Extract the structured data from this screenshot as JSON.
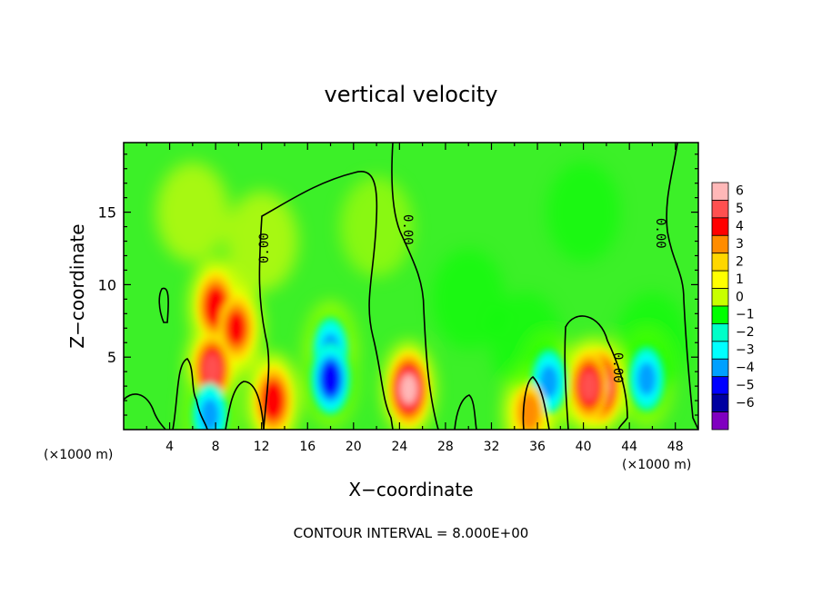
{
  "chart_data": {
    "type": "heatmap",
    "title": "vertical velocity",
    "xlabel": "X−coordinate",
    "ylabel": "Z−coordinate",
    "x_unit_left": "(×1000 m)",
    "x_unit_right": "(×1000 m)",
    "footer": "CONTOUR INTERVAL = 8.000E+00",
    "xlim": [
      0,
      50
    ],
    "ylim": [
      0,
      19.8
    ],
    "x_ticks": [
      "4",
      "8",
      "12",
      "16",
      "20",
      "24",
      "28",
      "32",
      "36",
      "40",
      "44",
      "48"
    ],
    "y_ticks": [
      "5",
      "10",
      "15"
    ],
    "colorbar": {
      "labels": [
        "6",
        "5",
        "4",
        "3",
        "2",
        "1",
        "0",
        "−1",
        "−2",
        "−3",
        "−4",
        "−5",
        "−6"
      ],
      "levels": [
        6,
        5,
        4,
        3,
        2,
        1,
        0,
        -1,
        -2,
        -3,
        -4,
        -5,
        -6
      ],
      "colors": [
        "#ffb8b8",
        "#ff5050",
        "#ff0000",
        "#ff8c00",
        "#ffd700",
        "#ffff00",
        "#c8ff00",
        "#00ff00",
        "#00ffc8",
        "#00ffff",
        "#00a0ff",
        "#0000ff",
        "#0000a0",
        "#8000c0"
      ]
    },
    "contour_labels": [
      "0.00",
      "0.00",
      "0.00",
      "0.00"
    ],
    "features": [
      {
        "x": 8,
        "z": 8.5,
        "w": 4.5
      },
      {
        "x": 9.8,
        "z": 7,
        "w": 4
      },
      {
        "x": 7.7,
        "z": 4.2,
        "w": 5
      },
      {
        "x": 13,
        "z": 2,
        "w": 4.5
      },
      {
        "x": 18,
        "z": 5.5,
        "w": -4
      },
      {
        "x": 18,
        "z": 3.5,
        "w": -5.5
      },
      {
        "x": 24.8,
        "z": 2.8,
        "w": 6
      },
      {
        "x": 41.5,
        "z": 3,
        "w": 6
      },
      {
        "x": 40.5,
        "z": 3,
        "w": 5
      },
      {
        "x": 45.5,
        "z": 3.5,
        "w": -4
      },
      {
        "x": 37,
        "z": 3.3,
        "w": -4
      },
      {
        "x": 7.5,
        "z": 1,
        "w": -4
      },
      {
        "x": 35.3,
        "z": 1.2,
        "w": 3
      }
    ]
  }
}
